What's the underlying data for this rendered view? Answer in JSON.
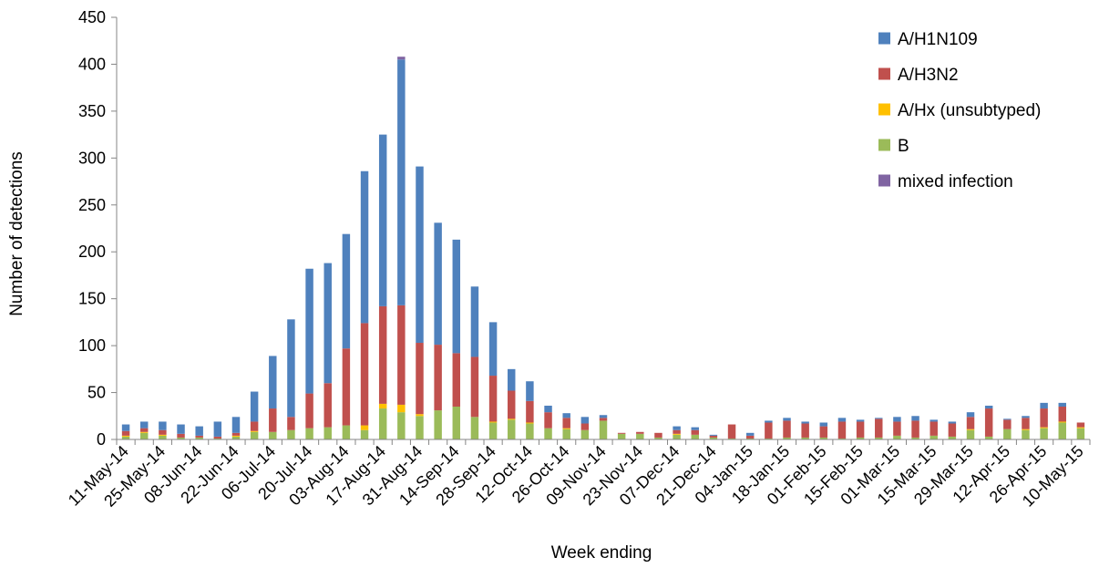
{
  "chart_data": {
    "type": "bar",
    "stacked": true,
    "xlabel": "Week ending",
    "ylabel": "Number of detections",
    "ylim": [
      0,
      450
    ],
    "yticks": [
      0,
      50,
      100,
      150,
      200,
      250,
      300,
      350,
      400,
      450
    ],
    "grid": false,
    "legend_position": "top-right",
    "categories": [
      "11-May-14",
      "18-May-14",
      "25-May-14",
      "01-Jun-14",
      "08-Jun-14",
      "15-Jun-14",
      "22-Jun-14",
      "29-Jun-14",
      "06-Jul-14",
      "13-Jul-14",
      "20-Jul-14",
      "27-Jul-14",
      "03-Aug-14",
      "10-Aug-14",
      "17-Aug-14",
      "24-Aug-14",
      "31-Aug-14",
      "07-Sep-14",
      "14-Sep-14",
      "21-Sep-14",
      "28-Sep-14",
      "05-Oct-14",
      "12-Oct-14",
      "19-Oct-14",
      "26-Oct-14",
      "02-Nov-14",
      "09-Nov-14",
      "16-Nov-14",
      "23-Nov-14",
      "30-Nov-14",
      "07-Dec-14",
      "14-Dec-14",
      "21-Dec-14",
      "28-Dec-14",
      "04-Jan-15",
      "11-Jan-15",
      "18-Jan-15",
      "25-Jan-15",
      "01-Feb-15",
      "08-Feb-15",
      "15-Feb-15",
      "22-Feb-15",
      "01-Mar-15",
      "08-Mar-15",
      "15-Mar-15",
      "22-Mar-15",
      "29-Mar-15",
      "05-Apr-15",
      "12-Apr-15",
      "19-Apr-15",
      "26-Apr-15",
      "03-May-15",
      "10-May-15"
    ],
    "tick_labels": [
      "11-May-14",
      "25-May-14",
      "08-Jun-14",
      "22-Jun-14",
      "06-Jul-14",
      "20-Jul-14",
      "03-Aug-14",
      "17-Aug-14",
      "31-Aug-14",
      "14-Sep-14",
      "28-Sep-14",
      "12-Oct-14",
      "26-Oct-14",
      "09-Nov-14",
      "23-Nov-14",
      "07-Dec-14",
      "21-Dec-14",
      "04-Jan-15",
      "18-Jan-15",
      "01-Feb-15",
      "15-Feb-15",
      "01-Mar-15",
      "15-Mar-15",
      "29-Mar-15",
      "12-Apr-15",
      "26-Apr-15",
      "10-May-15"
    ],
    "series": [
      {
        "name": "B",
        "color": "#9BBB59",
        "values": [
          3,
          7,
          4,
          2,
          2,
          1,
          3,
          8,
          8,
          10,
          12,
          13,
          15,
          10,
          33,
          29,
          25,
          31,
          35,
          24,
          18,
          21,
          17,
          12,
          11,
          10,
          20,
          6,
          6,
          2,
          5,
          5,
          2,
          1,
          1,
          1,
          2,
          2,
          2,
          1,
          2,
          2,
          4,
          2,
          4,
          3,
          10,
          3,
          11,
          10,
          12,
          18,
          12
        ]
      },
      {
        "name": "A/Hx (unsubtyped)",
        "color": "#FFC000",
        "values": [
          1,
          1,
          1,
          0,
          0,
          0,
          1,
          1,
          0,
          0,
          0,
          0,
          0,
          5,
          5,
          8,
          2,
          0,
          0,
          0,
          1,
          1,
          1,
          0,
          1,
          0,
          0,
          0,
          0,
          0,
          1,
          0,
          0,
          0,
          0,
          0,
          0,
          0,
          0,
          0,
          0,
          0,
          0,
          0,
          0,
          0,
          1,
          0,
          0,
          1,
          1,
          1,
          1
        ]
      },
      {
        "name": "A/H3N2",
        "color": "#C0504D",
        "values": [
          5,
          4,
          5,
          4,
          2,
          2,
          3,
          10,
          25,
          14,
          37,
          47,
          82,
          109,
          104,
          106,
          76,
          70,
          57,
          64,
          49,
          30,
          23,
          17,
          11,
          7,
          3,
          1,
          2,
          5,
          4,
          5,
          2,
          15,
          3,
          17,
          18,
          15,
          12,
          18,
          17,
          20,
          15,
          18,
          15,
          14,
          13,
          30,
          10,
          12,
          20,
          16,
          5
        ]
      },
      {
        "name": "A/H1N109",
        "color": "#4F81BD",
        "values": [
          7,
          7,
          9,
          10,
          10,
          16,
          17,
          32,
          56,
          104,
          133,
          128,
          122,
          162,
          183,
          262,
          188,
          130,
          121,
          75,
          57,
          23,
          21,
          7,
          5,
          7,
          3,
          0,
          0,
          0,
          4,
          3,
          1,
          0,
          3,
          2,
          3,
          2,
          4,
          4,
          2,
          1,
          5,
          5,
          2,
          2,
          5,
          3,
          1,
          2,
          6,
          4,
          0
        ]
      },
      {
        "name": "mixed infection",
        "color": "#8064A2",
        "values": [
          0,
          0,
          0,
          0,
          0,
          0,
          0,
          0,
          0,
          0,
          0,
          0,
          0,
          0,
          0,
          3,
          0,
          0,
          0,
          0,
          0,
          0,
          0,
          0,
          0,
          0,
          0,
          0,
          0,
          0,
          0,
          0,
          0,
          0,
          0,
          0,
          0,
          0,
          0,
          0,
          0,
          0,
          0,
          0,
          0,
          0,
          0,
          0,
          0,
          0,
          0,
          0,
          0
        ]
      }
    ],
    "legend": [
      {
        "name": "A/H1N109",
        "color": "#4F81BD"
      },
      {
        "name": "A/H3N2",
        "color": "#C0504D"
      },
      {
        "name": "A/Hx (unsubtyped)",
        "color": "#FFC000"
      },
      {
        "name": "B",
        "color": "#9BBB59"
      },
      {
        "name": "mixed infection",
        "color": "#8064A2"
      }
    ]
  }
}
